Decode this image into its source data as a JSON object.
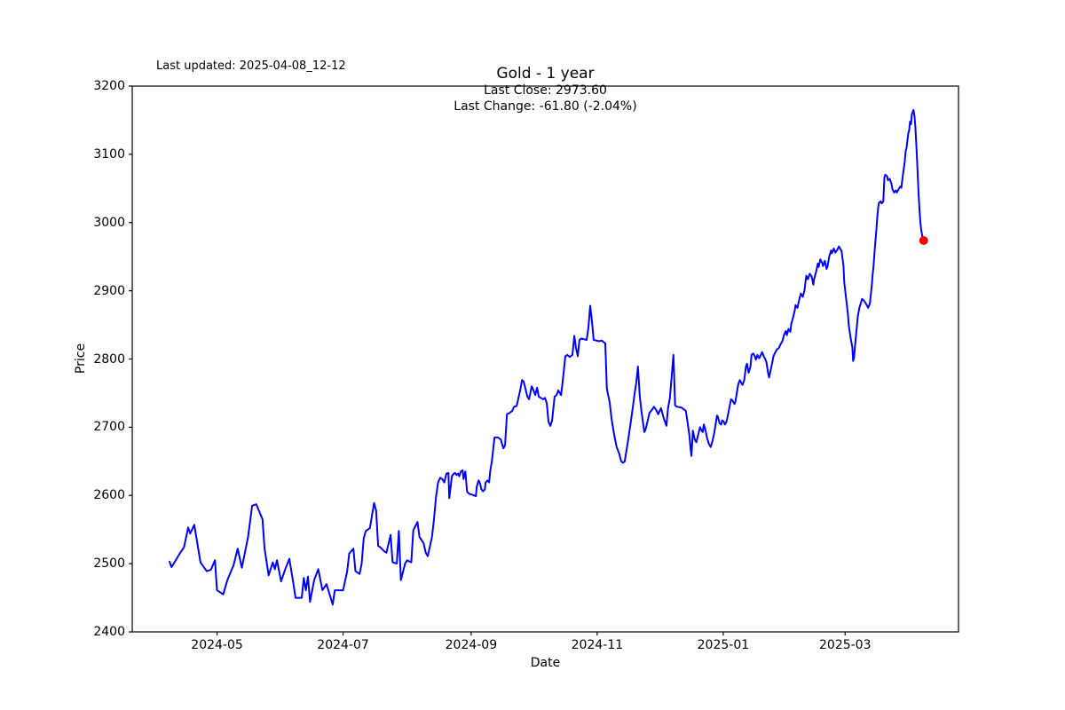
{
  "figure": {
    "background": "#ffffff",
    "text_color": "#000000"
  },
  "header": {
    "last_updated": "Last updated: 2025-04-08_12-12",
    "title": "Gold - 1 year",
    "last_close": "Last Close: 2973.60",
    "last_change": "Last Change: -61.80 (-2.04%)"
  },
  "axes": {
    "xlabel": "Date",
    "ylabel": "Price",
    "y_min": 2400,
    "y_max": 3200,
    "y_ticks": [
      2400,
      2500,
      2600,
      2700,
      2800,
      2900,
      3000,
      3100,
      3200
    ],
    "x_ticks": [
      {
        "label": "2024-05",
        "d": 23
      },
      {
        "label": "2024-07",
        "d": 84
      },
      {
        "label": "2024-09",
        "d": 146
      },
      {
        "label": "2024-11",
        "d": 207
      },
      {
        "label": "2025-01",
        "d": 268
      },
      {
        "label": "2025-03",
        "d": 327
      }
    ],
    "x_min_d": 0,
    "x_max_d": 365
  },
  "chart_data": {
    "type": "line",
    "title": "Gold - 1 year",
    "xlabel": "Date",
    "ylabel": "Price",
    "x_unit": "days since 2024-04-08",
    "x_range_dates": [
      "2024-04-08",
      "2025-04-08"
    ],
    "ylim": [
      2400,
      3200
    ],
    "grid": false,
    "legend": "none",
    "line_color": "#0000ff",
    "last_close": 2973.6,
    "last_change": -61.8,
    "last_change_pct": -2.04,
    "marker": {
      "shape": "circle",
      "color": "#ff0000",
      "meaning": "last close point",
      "value": 2973.6
    },
    "points": [
      [
        0,
        2503
      ],
      [
        1,
        2495
      ],
      [
        2,
        2500
      ],
      [
        5,
        2515
      ],
      [
        7,
        2524
      ],
      [
        9,
        2553
      ],
      [
        10,
        2544
      ],
      [
        12,
        2557
      ],
      [
        15,
        2502
      ],
      [
        18,
        2489
      ],
      [
        20,
        2491
      ],
      [
        22,
        2505
      ],
      [
        23,
        2461
      ],
      [
        26,
        2455
      ],
      [
        28,
        2476
      ],
      [
        31,
        2498
      ],
      [
        33,
        2522
      ],
      [
        35,
        2494
      ],
      [
        38,
        2539
      ],
      [
        40,
        2585
      ],
      [
        42,
        2587
      ],
      [
        45,
        2565
      ],
      [
        46,
        2522
      ],
      [
        48,
        2483
      ],
      [
        50,
        2502
      ],
      [
        51,
        2492
      ],
      [
        52,
        2505
      ],
      [
        54,
        2474
      ],
      [
        56,
        2492
      ],
      [
        58,
        2507
      ],
      [
        60,
        2470
      ],
      [
        61,
        2450
      ],
      [
        64,
        2450
      ],
      [
        65,
        2479
      ],
      [
        66,
        2461
      ],
      [
        67,
        2481
      ],
      [
        68,
        2444
      ],
      [
        70,
        2476
      ],
      [
        72,
        2492
      ],
      [
        74,
        2461
      ],
      [
        76,
        2470
      ],
      [
        79,
        2440
      ],
      [
        80,
        2461
      ],
      [
        84,
        2461
      ],
      [
        86,
        2489
      ],
      [
        87,
        2515
      ],
      [
        89,
        2522
      ],
      [
        90,
        2489
      ],
      [
        92,
        2485
      ],
      [
        93,
        2500
      ],
      [
        94,
        2537
      ],
      [
        95,
        2548
      ],
      [
        97,
        2552
      ],
      [
        99,
        2589
      ],
      [
        100,
        2578
      ],
      [
        101,
        2526
      ],
      [
        102,
        2524
      ],
      [
        104,
        2518
      ],
      [
        105,
        2516
      ],
      [
        107,
        2542
      ],
      [
        108,
        2502
      ],
      [
        110,
        2500
      ],
      [
        111,
        2548
      ],
      [
        112,
        2476
      ],
      [
        114,
        2500
      ],
      [
        115,
        2505
      ],
      [
        117,
        2502
      ],
      [
        118,
        2549
      ],
      [
        120,
        2561
      ],
      [
        121,
        2539
      ],
      [
        123,
        2530
      ],
      [
        124,
        2516
      ],
      [
        125,
        2511
      ],
      [
        127,
        2539
      ],
      [
        128,
        2565
      ],
      [
        129,
        2598
      ],
      [
        130,
        2619
      ],
      [
        131,
        2626
      ],
      [
        132,
        2624
      ],
      [
        133,
        2619
      ],
      [
        134,
        2632
      ],
      [
        135,
        2633
      ],
      [
        135.4,
        2596
      ],
      [
        136,
        2611
      ],
      [
        136.7,
        2628
      ],
      [
        137.6,
        2632
      ],
      [
        138.2,
        2633
      ],
      [
        138.9,
        2630
      ],
      [
        139.7,
        2632
      ],
      [
        140.2,
        2628
      ],
      [
        141,
        2635
      ],
      [
        141.9,
        2637
      ],
      [
        142.3,
        2624
      ],
      [
        143.2,
        2635
      ],
      [
        144,
        2606
      ],
      [
        144.4,
        2604
      ],
      [
        145.3,
        2602
      ],
      [
        146.6,
        2601
      ],
      [
        147.4,
        2600
      ],
      [
        148.3,
        2599
      ],
      [
        148.7,
        2613
      ],
      [
        149.6,
        2622
      ],
      [
        150.4,
        2617
      ],
      [
        150.9,
        2609
      ],
      [
        151.7,
        2606
      ],
      [
        152.6,
        2609
      ],
      [
        153,
        2619
      ],
      [
        153.9,
        2622
      ],
      [
        154.7,
        2619
      ],
      [
        155.2,
        2635
      ],
      [
        156,
        2650
      ],
      [
        157.3,
        2685
      ],
      [
        159,
        2685
      ],
      [
        160.3,
        2682
      ],
      [
        161.6,
        2669
      ],
      [
        162.4,
        2674
      ],
      [
        163.3,
        2719
      ],
      [
        164.6,
        2721
      ],
      [
        165.9,
        2724
      ],
      [
        166.7,
        2730
      ],
      [
        168,
        2731
      ],
      [
        169.7,
        2754
      ],
      [
        170.6,
        2769
      ],
      [
        171.4,
        2767
      ],
      [
        172.3,
        2756
      ],
      [
        173.2,
        2745
      ],
      [
        174,
        2741
      ],
      [
        175.3,
        2760
      ],
      [
        176.2,
        2754
      ],
      [
        177,
        2747
      ],
      [
        177.9,
        2758
      ],
      [
        178.7,
        2745
      ],
      [
        179.6,
        2743
      ],
      [
        180.9,
        2741
      ],
      [
        181.7,
        2743
      ],
      [
        182.6,
        2735
      ],
      [
        183.4,
        2708
      ],
      [
        184.3,
        2702
      ],
      [
        185.2,
        2710
      ],
      [
        186.4,
        2745
      ],
      [
        187.3,
        2747
      ],
      [
        188.2,
        2754
      ],
      [
        189.5,
        2747
      ],
      [
        190.3,
        2767
      ],
      [
        191.6,
        2804
      ],
      [
        192.5,
        2806
      ],
      [
        193.7,
        2803
      ],
      [
        195,
        2806
      ],
      [
        195.9,
        2834
      ],
      [
        196.7,
        2817
      ],
      [
        197.6,
        2804
      ],
      [
        198.4,
        2828
      ],
      [
        199.3,
        2830
      ],
      [
        200.6,
        2829
      ],
      [
        201.9,
        2828
      ],
      [
        202.7,
        2845
      ],
      [
        203.6,
        2878
      ],
      [
        204.5,
        2854
      ],
      [
        205.3,
        2828
      ],
      [
        206.6,
        2827
      ],
      [
        207.9,
        2826
      ],
      [
        209.2,
        2827
      ],
      [
        210,
        2825
      ],
      [
        210.9,
        2823
      ],
      [
        211.7,
        2756
      ],
      [
        213,
        2737
      ],
      [
        213.9,
        2713
      ],
      [
        215.2,
        2689
      ],
      [
        216.4,
        2671
      ],
      [
        217.7,
        2661
      ],
      [
        218.6,
        2650
      ],
      [
        219.5,
        2648
      ],
      [
        220.3,
        2650
      ],
      [
        221.6,
        2674
      ],
      [
        222.9,
        2700
      ],
      [
        224.2,
        2728
      ],
      [
        225,
        2747
      ],
      [
        225.9,
        2765
      ],
      [
        226.7,
        2789
      ],
      [
        227.6,
        2745
      ],
      [
        228.4,
        2724
      ],
      [
        229.3,
        2704
      ],
      [
        229.8,
        2693
      ],
      [
        230.4,
        2697
      ],
      [
        231,
        2704
      ],
      [
        232.3,
        2721
      ],
      [
        233.6,
        2726
      ],
      [
        234.5,
        2730
      ],
      [
        235.8,
        2724
      ],
      [
        236.5,
        2719
      ],
      [
        237.9,
        2728
      ],
      [
        239.2,
        2713
      ],
      [
        240.5,
        2702
      ],
      [
        241.3,
        2728
      ],
      [
        242.2,
        2743
      ],
      [
        243.9,
        2806
      ],
      [
        244.7,
        2732
      ],
      [
        245.6,
        2730
      ],
      [
        247.7,
        2729
      ],
      [
        249.9,
        2724
      ],
      [
        250.7,
        2708
      ],
      [
        251.6,
        2689
      ],
      [
        252.2,
        2669
      ],
      [
        252.6,
        2658
      ],
      [
        253.3,
        2695
      ],
      [
        254.2,
        2682
      ],
      [
        255,
        2678
      ],
      [
        255.9,
        2689
      ],
      [
        256.8,
        2700
      ],
      [
        257.6,
        2695
      ],
      [
        258.1,
        2693
      ],
      [
        258.6,
        2704
      ],
      [
        259.3,
        2697
      ],
      [
        260.2,
        2684
      ],
      [
        261,
        2676
      ],
      [
        261.9,
        2671
      ],
      [
        262.8,
        2680
      ],
      [
        263.6,
        2691
      ],
      [
        264.5,
        2708
      ],
      [
        265,
        2717
      ],
      [
        265.4,
        2715
      ],
      [
        266.2,
        2706
      ],
      [
        267,
        2704
      ],
      [
        267.5,
        2710
      ],
      [
        268.3,
        2708
      ],
      [
        268.8,
        2704
      ],
      [
        269.6,
        2708
      ],
      [
        270.5,
        2721
      ],
      [
        271.3,
        2734
      ],
      [
        271.8,
        2741
      ],
      [
        272.5,
        2739
      ],
      [
        273.4,
        2734
      ],
      [
        273.9,
        2737
      ],
      [
        275.2,
        2762
      ],
      [
        276,
        2769
      ],
      [
        277.3,
        2762
      ],
      [
        278.2,
        2769
      ],
      [
        279,
        2789
      ],
      [
        279.5,
        2793
      ],
      [
        280.3,
        2780
      ],
      [
        281.2,
        2789
      ],
      [
        281.7,
        2806
      ],
      [
        282.5,
        2808
      ],
      [
        283.3,
        2804
      ],
      [
        283.8,
        2799
      ],
      [
        284.6,
        2806
      ],
      [
        285.4,
        2801
      ],
      [
        285.9,
        2804
      ],
      [
        286.8,
        2810
      ],
      [
        287.6,
        2804
      ],
      [
        288.5,
        2799
      ],
      [
        288.9,
        2795
      ],
      [
        289.7,
        2780
      ],
      [
        290.2,
        2773
      ],
      [
        291,
        2784
      ],
      [
        291.9,
        2797
      ],
      [
        292.3,
        2804
      ],
      [
        293.2,
        2810
      ],
      [
        294,
        2814
      ],
      [
        294.9,
        2816
      ],
      [
        295.8,
        2822
      ],
      [
        296.6,
        2826
      ],
      [
        297.5,
        2836
      ],
      [
        298.3,
        2841
      ],
      [
        298.8,
        2835
      ],
      [
        299.6,
        2844
      ],
      [
        300.5,
        2840
      ],
      [
        300.9,
        2851
      ],
      [
        301.8,
        2861
      ],
      [
        302.6,
        2871
      ],
      [
        303,
        2879
      ],
      [
        303.9,
        2875
      ],
      [
        304.7,
        2886
      ],
      [
        305.6,
        2896
      ],
      [
        306.5,
        2891
      ],
      [
        307.3,
        2900
      ],
      [
        307.8,
        2913
      ],
      [
        308.2,
        2922
      ],
      [
        309,
        2917
      ],
      [
        309.9,
        2925
      ],
      [
        310.8,
        2921
      ],
      [
        311.6,
        2909
      ],
      [
        312,
        2917
      ],
      [
        312.9,
        2927
      ],
      [
        313.8,
        2940
      ],
      [
        314.2,
        2935
      ],
      [
        315,
        2946
      ],
      [
        315.9,
        2941
      ],
      [
        316.3,
        2936
      ],
      [
        317.2,
        2944
      ],
      [
        318,
        2932
      ],
      [
        318.5,
        2936
      ],
      [
        319.3,
        2950
      ],
      [
        320.2,
        2959
      ],
      [
        320.6,
        2955
      ],
      [
        321.5,
        2962
      ],
      [
        322.3,
        2956
      ],
      [
        323.2,
        2960
      ],
      [
        324,
        2965
      ],
      [
        325.3,
        2958
      ],
      [
        326.2,
        2936
      ],
      [
        326.6,
        2912
      ],
      [
        327.5,
        2888
      ],
      [
        328.3,
        2867
      ],
      [
        328.8,
        2849
      ],
      [
        329.6,
        2832
      ],
      [
        330.5,
        2817
      ],
      [
        330.9,
        2797
      ],
      [
        331.3,
        2802
      ],
      [
        331.8,
        2819
      ],
      [
        332.6,
        2845
      ],
      [
        333.1,
        2862
      ],
      [
        333.9,
        2875
      ],
      [
        334.8,
        2884
      ],
      [
        335.2,
        2888
      ],
      [
        336,
        2886
      ],
      [
        336.9,
        2882
      ],
      [
        337.8,
        2877
      ],
      [
        338.2,
        2875
      ],
      [
        339,
        2882
      ],
      [
        339.4,
        2893
      ],
      [
        339.9,
        2908
      ],
      [
        340.3,
        2923
      ],
      [
        340.8,
        2938
      ],
      [
        341.2,
        2955
      ],
      [
        341.6,
        2970
      ],
      [
        342,
        2985
      ],
      [
        342.5,
        3005
      ],
      [
        343,
        3022
      ],
      [
        343.4,
        3029
      ],
      [
        344.2,
        3031
      ],
      [
        344.7,
        3028
      ],
      [
        345.5,
        3031
      ],
      [
        346,
        3066
      ],
      [
        346.4,
        3070
      ],
      [
        347.3,
        3068
      ],
      [
        347.7,
        3062
      ],
      [
        348.6,
        3064
      ],
      [
        349.4,
        3057
      ],
      [
        349.9,
        3049
      ],
      [
        350.7,
        3044
      ],
      [
        351.6,
        3047
      ],
      [
        352,
        3044
      ],
      [
        352.9,
        3049
      ],
      [
        353.7,
        3053
      ],
      [
        354.2,
        3051
      ],
      [
        355,
        3070
      ],
      [
        355.9,
        3090
      ],
      [
        356.3,
        3105
      ],
      [
        356.7,
        3109
      ],
      [
        357.2,
        3122
      ],
      [
        357.6,
        3131
      ],
      [
        358,
        3135
      ],
      [
        358.4,
        3148
      ],
      [
        358.9,
        3144
      ],
      [
        359.3,
        3159
      ],
      [
        360.1,
        3165
      ],
      [
        360.6,
        3155
      ],
      [
        361,
        3140
      ],
      [
        361.4,
        3118
      ],
      [
        361.8,
        3092
      ],
      [
        362.2,
        3066
      ],
      [
        362.6,
        3040
      ],
      [
        363,
        3018
      ],
      [
        363.4,
        3001
      ],
      [
        363.8,
        2990
      ],
      [
        364.2,
        2982
      ],
      [
        364.6,
        2976
      ],
      [
        365,
        2973.6
      ]
    ]
  }
}
